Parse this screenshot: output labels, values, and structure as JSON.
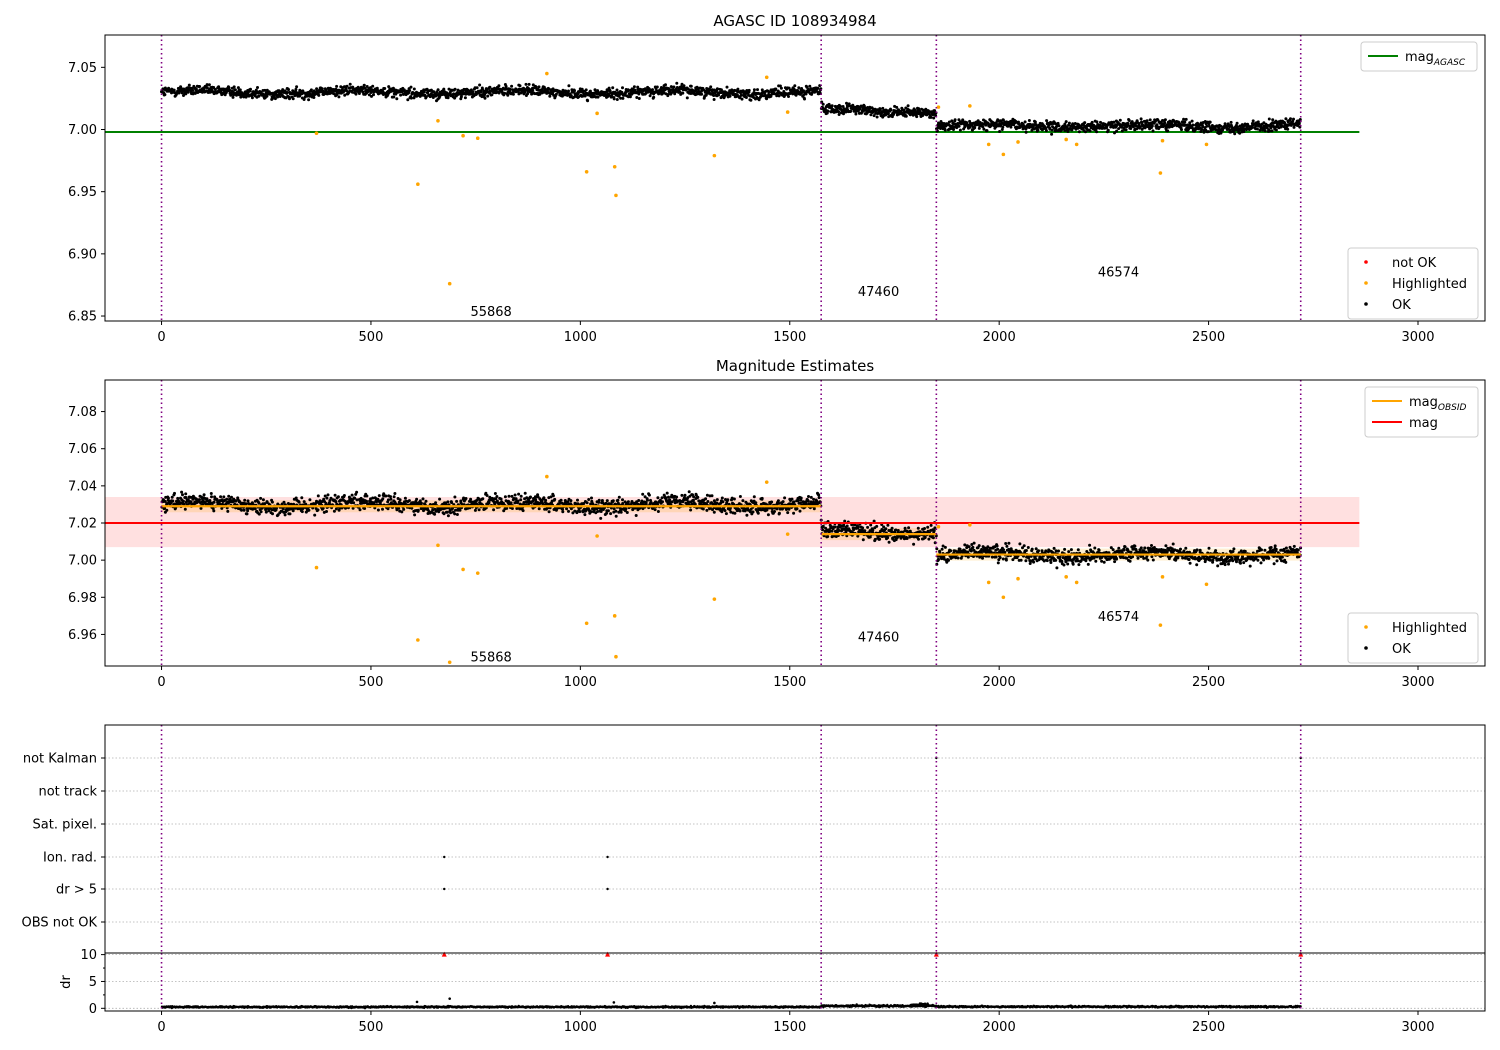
{
  "chart_data": [
    {
      "type": "scatter",
      "title": "AGASC ID 108934984",
      "xlim": [
        -135,
        3160
      ],
      "ylim": [
        6.846,
        7.076
      ],
      "xticks": [
        0,
        500,
        1000,
        1500,
        2000,
        2500,
        3000
      ],
      "yticks": [
        6.85,
        6.9,
        6.95,
        7.0,
        7.05
      ],
      "ytick_labels": [
        "6.85",
        "6.90",
        "6.95",
        "7.00",
        "7.05"
      ],
      "grid": false,
      "obsid_boundaries": [
        0,
        1575,
        1850,
        2720
      ],
      "obsid_labels": [
        {
          "text": "55868",
          "x": 787,
          "y": 6.854
        },
        {
          "text": "47460",
          "x": 1712,
          "y": 6.87
        },
        {
          "text": "46574",
          "x": 2285,
          "y": 6.886
        }
      ],
      "reference_line": {
        "name": "mag_AGASC",
        "value": 6.998,
        "x_range": [
          -135,
          2860
        ],
        "color": "#008000"
      },
      "ok_segments": [
        {
          "x_range": [
            0,
            1575
          ],
          "mean": 7.03,
          "spread": 0.006
        },
        {
          "x_range": [
            1575,
            1850
          ],
          "mean": 7.015,
          "spread": 0.006
        },
        {
          "x_range": [
            1850,
            2720
          ],
          "mean": 7.003,
          "spread": 0.006
        }
      ],
      "highlighted": [
        [
          370,
          6.997
        ],
        [
          612,
          6.956
        ],
        [
          660,
          7.007
        ],
        [
          688,
          6.876
        ],
        [
          720,
          6.995
        ],
        [
          755,
          6.993
        ],
        [
          920,
          7.045
        ],
        [
          1015,
          6.966
        ],
        [
          1040,
          7.013
        ],
        [
          1082,
          6.97
        ],
        [
          1085,
          6.947
        ],
        [
          1320,
          6.979
        ],
        [
          1445,
          7.042
        ],
        [
          1495,
          7.014
        ],
        [
          1855,
          7.018
        ],
        [
          1930,
          7.019
        ],
        [
          1975,
          6.988
        ],
        [
          2010,
          6.98
        ],
        [
          2045,
          6.99
        ],
        [
          2160,
          6.992
        ],
        [
          2185,
          6.988
        ],
        [
          2385,
          6.965
        ],
        [
          2390,
          6.991
        ],
        [
          2495,
          6.988
        ]
      ],
      "legends": [
        {
          "placement": "upper-right",
          "entries": [
            {
              "label": "mag",
              "sub": "AGASC",
              "type": "line",
              "color": "#008000"
            }
          ]
        },
        {
          "placement": "lower-right",
          "entries": [
            {
              "label": "not OK",
              "type": "dot",
              "color": "#ff0000"
            },
            {
              "label": "Highlighted",
              "type": "dot",
              "color": "#ffa500"
            },
            {
              "label": "OK",
              "type": "dot",
              "color": "#000000"
            }
          ]
        }
      ]
    },
    {
      "type": "scatter",
      "title": "Magnitude Estimates",
      "xlim": [
        -135,
        3160
      ],
      "ylim": [
        6.943,
        7.097
      ],
      "xticks": [
        0,
        500,
        1000,
        1500,
        2000,
        2500,
        3000
      ],
      "yticks": [
        6.96,
        6.98,
        7.0,
        7.02,
        7.04,
        7.06,
        7.08
      ],
      "ytick_labels": [
        "6.96",
        "6.98",
        "7.00",
        "7.02",
        "7.04",
        "7.06",
        "7.08"
      ],
      "grid": false,
      "obsid_boundaries": [
        0,
        1575,
        1850,
        2720
      ],
      "obsid_labels": [
        {
          "text": "55868",
          "x": 787,
          "y": 6.948
        },
        {
          "text": "47460",
          "x": 1712,
          "y": 6.959
        },
        {
          "text": "46574",
          "x": 2285,
          "y": 6.97
        }
      ],
      "mag_line": {
        "name": "mag",
        "value": 7.02,
        "band": [
          7.007,
          7.034
        ],
        "x_range": [
          -135,
          2860
        ],
        "color": "#ff0000"
      },
      "mag_obsid": [
        {
          "x_range": [
            0,
            1575
          ],
          "value": 7.029,
          "color": "#ffa500"
        },
        {
          "x_range": [
            1575,
            1850
          ],
          "value": 7.014,
          "color": "#ffa500"
        },
        {
          "x_range": [
            1850,
            2720
          ],
          "value": 7.003,
          "color": "#ffa500"
        }
      ],
      "ok_segments": [
        {
          "x_range": [
            0,
            1575
          ],
          "mean": 7.03,
          "spread": 0.006
        },
        {
          "x_range": [
            1575,
            1850
          ],
          "mean": 7.015,
          "spread": 0.006
        },
        {
          "x_range": [
            1850,
            2720
          ],
          "mean": 7.003,
          "spread": 0.006
        }
      ],
      "highlighted": [
        [
          370,
          6.996
        ],
        [
          612,
          6.957
        ],
        [
          660,
          7.008
        ],
        [
          688,
          6.945
        ],
        [
          720,
          6.995
        ],
        [
          755,
          6.993
        ],
        [
          920,
          7.045
        ],
        [
          1015,
          6.966
        ],
        [
          1040,
          7.013
        ],
        [
          1082,
          6.97
        ],
        [
          1085,
          6.948
        ],
        [
          1320,
          6.979
        ],
        [
          1445,
          7.042
        ],
        [
          1495,
          7.014
        ],
        [
          1855,
          7.018
        ],
        [
          1930,
          7.019
        ],
        [
          1975,
          6.988
        ],
        [
          2010,
          6.98
        ],
        [
          2045,
          6.99
        ],
        [
          2160,
          6.991
        ],
        [
          2185,
          6.988
        ],
        [
          2385,
          6.965
        ],
        [
          2390,
          6.991
        ],
        [
          2495,
          6.987
        ]
      ],
      "legends": [
        {
          "placement": "upper-right",
          "entries": [
            {
              "label": "mag",
              "sub": "OBSID",
              "type": "line",
              "color": "#ffa500"
            },
            {
              "label": "mag",
              "type": "line",
              "color": "#ff0000"
            }
          ]
        },
        {
          "placement": "lower-right",
          "entries": [
            {
              "label": "Highlighted",
              "type": "dot",
              "color": "#ffa500"
            },
            {
              "label": "OK",
              "type": "dot",
              "color": "#000000"
            }
          ]
        }
      ]
    },
    {
      "type": "scatter",
      "title": "",
      "xlim": [
        -135,
        3160
      ],
      "flag_rows": [
        "not Kalman",
        "not track",
        "Sat. pixel.",
        "Ion. rad.",
        "dr > 5",
        "OBS not OK"
      ],
      "flag_points": [
        {
          "row": "not Kalman",
          "x": 1850
        },
        {
          "row": "not Kalman",
          "x": 2720
        },
        {
          "row": "Ion. rad.",
          "x": 675
        },
        {
          "row": "Ion. rad.",
          "x": 1065
        },
        {
          "row": "dr > 5",
          "x": 675
        },
        {
          "row": "dr > 5",
          "x": 1065
        }
      ],
      "obsid_boundaries": [
        0,
        1575,
        1850,
        2720
      ],
      "grid": true
    },
    {
      "type": "scatter",
      "title": "",
      "ylabel": "dr",
      "xlim": [
        -135,
        3160
      ],
      "ylim": [
        -0.5,
        10.3
      ],
      "xticks": [
        0,
        500,
        1000,
        1500,
        2000,
        2500,
        3000
      ],
      "yticks": [
        0,
        5,
        10
      ],
      "ytick_labels": [
        "0",
        "5",
        "10"
      ],
      "grid": true,
      "clipped_points": [
        [
          675,
          10
        ],
        [
          1065,
          10
        ],
        [
          1850,
          10
        ],
        [
          2720,
          10
        ]
      ],
      "outliers": [
        [
          610,
          1.2
        ],
        [
          688,
          1.8
        ],
        [
          1080,
          1.1
        ],
        [
          1320,
          1.0
        ]
      ],
      "dr_segments": [
        {
          "x_range": [
            0,
            1575
          ],
          "mean": 0.25,
          "spread": 0.2
        },
        {
          "x_range": [
            1575,
            1850
          ],
          "mean": 0.45,
          "spread": 0.25
        },
        {
          "x_range": [
            1850,
            2720
          ],
          "mean": 0.3,
          "spread": 0.2
        }
      ],
      "dr_bump": {
        "x_range": [
          1790,
          1830
        ],
        "value": 0.9
      },
      "obsid_boundaries": [
        0,
        1575,
        1850,
        2720
      ]
    }
  ]
}
